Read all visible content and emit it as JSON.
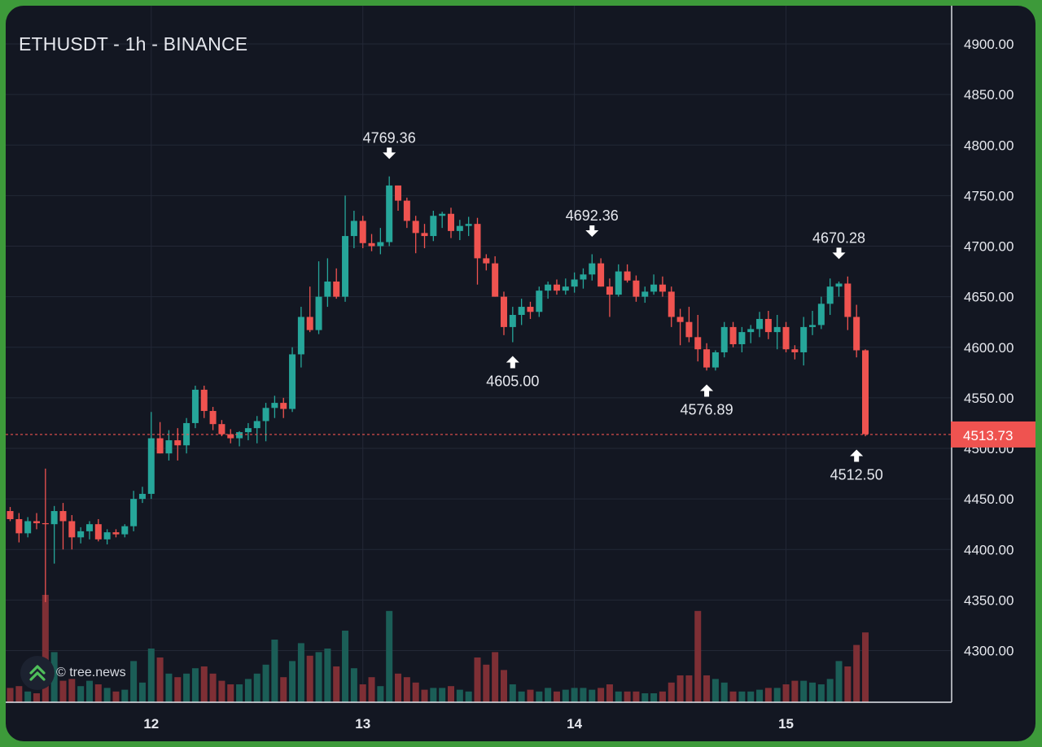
{
  "header": {
    "title": "ETHUSDT - 1h - BINANCE"
  },
  "watermark": {
    "text": "© tree.news",
    "icon": "tree-news-logo-icon"
  },
  "colors": {
    "background": "#131722",
    "grid": "#232836",
    "up": "#26a69a",
    "down": "#ef5350",
    "up_volume": "#1b5e57",
    "down_volume": "#7e2f35",
    "text": "#e6e8ee",
    "frame": "#3d9a3a"
  },
  "chart_data": {
    "type": "candlestick",
    "title": "ETHUSDT - 1h - BINANCE",
    "ylim": [
      4250,
      4925
    ],
    "y_ticks": [
      4300,
      4350,
      4400,
      4450,
      4500,
      4550,
      4600,
      4650,
      4700,
      4750,
      4800,
      4850,
      4900
    ],
    "y_tick_labels": [
      "4300.00",
      "4350.00",
      "4400.00",
      "4450.00",
      "4500.00",
      "4550.00",
      "4600.00",
      "4650.00",
      "4700.00",
      "4750.00",
      "4800.00",
      "4850.00",
      "4900.00"
    ],
    "x_ticks": [
      {
        "label": "12",
        "index": 16
      },
      {
        "label": "13",
        "index": 40
      },
      {
        "label": "14",
        "index": 64
      },
      {
        "label": "15",
        "index": 88
      }
    ],
    "last_price": {
      "value": 4513.73,
      "label": "4513.73"
    },
    "annotations": [
      {
        "label": "4769.36",
        "value": 4769.36,
        "index": 43,
        "kind": "high"
      },
      {
        "label": "4605.00",
        "value": 4605.0,
        "index": 57,
        "kind": "low"
      },
      {
        "label": "4692.36",
        "value": 4692.36,
        "index": 66,
        "kind": "high"
      },
      {
        "label": "4576.89",
        "value": 4576.89,
        "index": 79,
        "kind": "low"
      },
      {
        "label": "4670.28",
        "value": 4670.28,
        "index": 94,
        "kind": "high"
      },
      {
        "label": "4512.50",
        "value": 4512.5,
        "index": 96,
        "kind": "low"
      }
    ],
    "grid": true,
    "candles": [
      [
        4438,
        4442,
        4428,
        4430,
        0.8
      ],
      [
        4430,
        4436,
        4407,
        4416,
        0.9
      ],
      [
        4416,
        4432,
        4412,
        4428,
        0.6
      ],
      [
        4428,
        4436,
        4420,
        4426,
        0.5
      ],
      [
        4426,
        4480,
        4348,
        4425,
        6.0
      ],
      [
        4425,
        4443,
        4386,
        4438,
        2.8
      ],
      [
        4438,
        4446,
        4400,
        4428,
        1.2
      ],
      [
        4428,
        4434,
        4400,
        4412,
        1.3
      ],
      [
        4412,
        4422,
        4406,
        4418,
        0.9
      ],
      [
        4418,
        4428,
        4410,
        4425,
        1.2
      ],
      [
        4425,
        4430,
        4408,
        4410,
        1.0
      ],
      [
        4410,
        4420,
        4405,
        4417,
        0.8
      ],
      [
        4417,
        4420,
        4412,
        4415,
        0.6
      ],
      [
        4415,
        4425,
        4412,
        4423,
        0.7
      ],
      [
        4423,
        4458,
        4418,
        4450,
        2.3
      ],
      [
        4450,
        4462,
        4446,
        4455,
        1.1
      ],
      [
        4455,
        4536,
        4450,
        4510,
        3.0
      ],
      [
        4510,
        4526,
        4495,
        4495,
        2.5
      ],
      [
        4495,
        4518,
        4488,
        4508,
        1.6
      ],
      [
        4508,
        4520,
        4488,
        4503,
        1.4
      ],
      [
        4503,
        4530,
        4495,
        4525,
        1.6
      ],
      [
        4525,
        4562,
        4520,
        4558,
        1.9
      ],
      [
        4558,
        4562,
        4530,
        4537,
        2.0
      ],
      [
        4537,
        4541,
        4518,
        4524,
        1.6
      ],
      [
        4524,
        4528,
        4512,
        4514,
        1.2
      ],
      [
        4514,
        4519,
        4505,
        4510,
        1.0
      ],
      [
        4510,
        4517,
        4502,
        4516,
        1.0
      ],
      [
        4516,
        4525,
        4508,
        4520,
        1.3
      ],
      [
        4520,
        4532,
        4505,
        4527,
        1.6
      ],
      [
        4527,
        4545,
        4507,
        4540,
        2.1
      ],
      [
        4540,
        4552,
        4530,
        4545,
        3.5
      ],
      [
        4545,
        4550,
        4530,
        4539,
        1.4
      ],
      [
        4539,
        4600,
        4536,
        4593,
        2.3
      ],
      [
        4593,
        4640,
        4580,
        4630,
        3.3
      ],
      [
        4630,
        4660,
        4615,
        4617,
        2.6
      ],
      [
        4617,
        4685,
        4613,
        4650,
        2.8
      ],
      [
        4650,
        4688,
        4640,
        4665,
        3.0
      ],
      [
        4665,
        4678,
        4648,
        4650,
        2.0
      ],
      [
        4650,
        4750,
        4645,
        4710,
        4.0
      ],
      [
        4710,
        4735,
        4698,
        4725,
        1.9
      ],
      [
        4725,
        4730,
        4698,
        4703,
        1.0
      ],
      [
        4703,
        4712,
        4695,
        4700,
        1.4
      ],
      [
        4700,
        4718,
        4692,
        4704,
        0.9
      ],
      [
        4704,
        4769,
        4700,
        4760,
        5.1
      ],
      [
        4760,
        4760,
        4735,
        4745,
        1.6
      ],
      [
        4745,
        4748,
        4718,
        4725,
        1.4
      ],
      [
        4725,
        4730,
        4693,
        4713,
        1.1
      ],
      [
        4713,
        4722,
        4698,
        4710,
        0.7
      ],
      [
        4710,
        4735,
        4705,
        4730,
        0.8
      ],
      [
        4730,
        4734,
        4718,
        4732,
        0.8
      ],
      [
        4732,
        4738,
        4708,
        4715,
        0.9
      ],
      [
        4715,
        4726,
        4706,
        4720,
        0.7
      ],
      [
        4720,
        4729,
        4710,
        4722,
        0.6
      ],
      [
        4722,
        4728,
        4662,
        4688,
        2.5
      ],
      [
        4688,
        4692,
        4676,
        4683,
        2.1
      ],
      [
        4683,
        4690,
        4650,
        4650,
        2.8
      ],
      [
        4650,
        4655,
        4612,
        4620,
        1.8
      ],
      [
        4620,
        4640,
        4605,
        4632,
        1.0
      ],
      [
        4632,
        4648,
        4622,
        4640,
        0.6
      ],
      [
        4640,
        4645,
        4628,
        4635,
        0.7
      ],
      [
        4635,
        4660,
        4630,
        4656,
        0.6
      ],
      [
        4656,
        4665,
        4648,
        4662,
        0.8
      ],
      [
        4662,
        4667,
        4652,
        4656,
        0.6
      ],
      [
        4656,
        4668,
        4652,
        4660,
        0.7
      ],
      [
        4660,
        4674,
        4654,
        4667,
        0.8
      ],
      [
        4667,
        4678,
        4658,
        4672,
        0.8
      ],
      [
        4672,
        4692,
        4666,
        4683,
        0.7
      ],
      [
        4683,
        4688,
        4660,
        4660,
        0.8
      ],
      [
        4660,
        4668,
        4630,
        4652,
        1.0
      ],
      [
        4652,
        4682,
        4650,
        4675,
        0.6
      ],
      [
        4675,
        4682,
        4664,
        4666,
        0.6
      ],
      [
        4666,
        4671,
        4645,
        4650,
        0.6
      ],
      [
        4650,
        4660,
        4644,
        4655,
        0.5
      ],
      [
        4655,
        4672,
        4652,
        4662,
        0.5
      ],
      [
        4662,
        4670,
        4650,
        4655,
        0.6
      ],
      [
        4655,
        4660,
        4620,
        4630,
        1.1
      ],
      [
        4630,
        4638,
        4602,
        4625,
        1.5
      ],
      [
        4625,
        4640,
        4605,
        4610,
        1.5
      ],
      [
        4610,
        4632,
        4586,
        4598,
        5.1
      ],
      [
        4598,
        4604,
        4577,
        4580,
        1.5
      ],
      [
        4580,
        4597,
        4577,
        4595,
        1.3
      ],
      [
        4595,
        4625,
        4590,
        4620,
        1.1
      ],
      [
        4620,
        4625,
        4600,
        4603,
        0.6
      ],
      [
        4603,
        4620,
        4595,
        4615,
        0.6
      ],
      [
        4615,
        4622,
        4604,
        4618,
        0.6
      ],
      [
        4618,
        4635,
        4610,
        4628,
        0.7
      ],
      [
        4628,
        4636,
        4608,
        4615,
        0.8
      ],
      [
        4615,
        4632,
        4598,
        4620,
        0.8
      ],
      [
        4620,
        4625,
        4595,
        4598,
        1.0
      ],
      [
        4598,
        4602,
        4588,
        4595,
        1.2
      ],
      [
        4595,
        4630,
        4582,
        4620,
        1.2
      ],
      [
        4620,
        4636,
        4612,
        4622,
        1.1
      ],
      [
        4622,
        4650,
        4618,
        4643,
        1.0
      ],
      [
        4643,
        4668,
        4632,
        4660,
        1.3
      ],
      [
        4660,
        4665,
        4650,
        4663,
        2.3
      ],
      [
        4663,
        4670,
        4617,
        4630,
        2.0
      ],
      [
        4630,
        4642,
        4590,
        4597,
        3.2
      ],
      [
        4597,
        4598,
        4512,
        4514,
        3.9
      ]
    ]
  }
}
